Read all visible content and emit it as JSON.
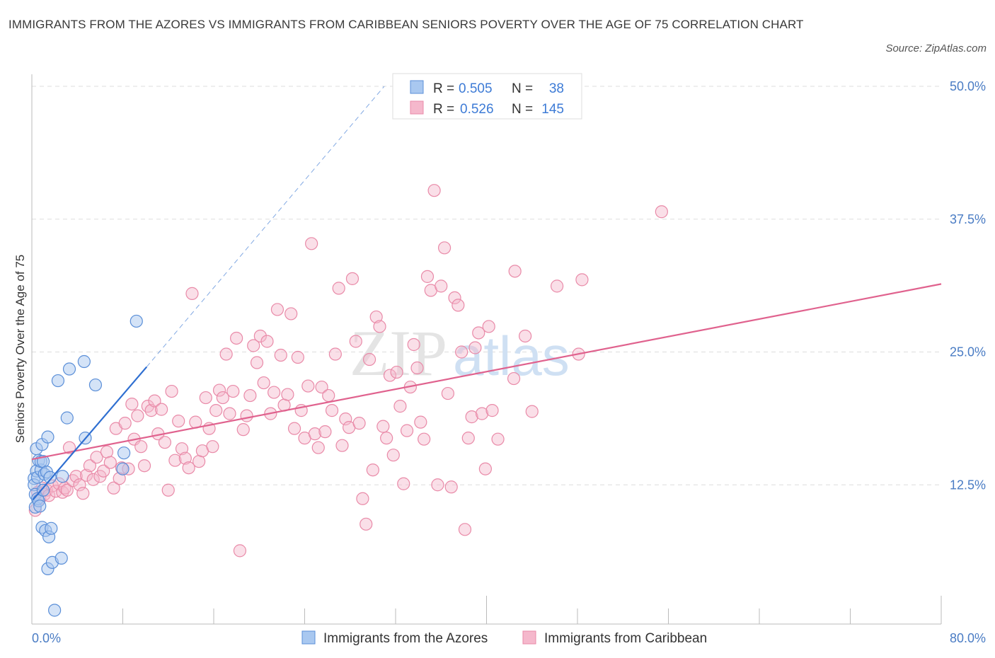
{
  "header": {
    "title": "IMMIGRANTS FROM THE AZORES VS IMMIGRANTS FROM CARIBBEAN SENIORS POVERTY OVER THE AGE OF 75 CORRELATION CHART",
    "source": "Source: ZipAtlas.com"
  },
  "watermark": {
    "zip": "ZIP",
    "atlas": "atlas"
  },
  "legend": {
    "r_label": "R =",
    "n_label": "N =",
    "azores": {
      "r": "0.505",
      "n": "38"
    },
    "caribbean": {
      "r": "0.526",
      "n": "145"
    }
  },
  "bottom_legend": {
    "azores": "Immigrants from the Azores",
    "caribbean": "Immigrants from Caribbean"
  },
  "colors": {
    "azores_fill": "#a9c8f0",
    "azores_stroke": "#5b8fd8",
    "azores_line": "#2f6fd1",
    "caribbean_fill": "#f5b8cc",
    "caribbean_stroke": "#e98aa8",
    "caribbean_line": "#e0628e",
    "grid": "#dddddd",
    "axis_label": "#4a7cc4"
  },
  "chart_data": {
    "type": "scatter",
    "title": "IMMIGRANTS FROM THE AZORES VS IMMIGRANTS FROM CARIBBEAN SENIORS POVERTY OVER THE AGE OF 75 CORRELATION CHART",
    "xlabel": "",
    "ylabel": "Seniors Poverty Over the Age of 75",
    "xlim": [
      0,
      80
    ],
    "ylim": [
      0,
      50
    ],
    "x_tick_labels": [
      "0.0%",
      "80.0%"
    ],
    "y_ticks": [
      12.5,
      25,
      37.5,
      50
    ],
    "y_tick_labels": [
      "12.5%",
      "25.0%",
      "37.5%",
      "50.0%"
    ],
    "series": [
      {
        "name": "Immigrants from the Azores",
        "r": 0.505,
        "n": 38,
        "trend": {
          "x": [
            0.1,
            10.1
          ],
          "y": [
            11.1,
            23.6
          ]
        },
        "trend_extension": {
          "x": [
            10.1,
            31.0
          ],
          "y": [
            23.6,
            50.0
          ]
        },
        "points": [
          [
            0.2,
            13.1
          ],
          [
            0.2,
            12.5
          ],
          [
            0.3,
            11.6
          ],
          [
            0.3,
            10.4
          ],
          [
            0.4,
            13.8
          ],
          [
            0.4,
            15.9
          ],
          [
            0.5,
            13.2
          ],
          [
            0.5,
            11.2
          ],
          [
            0.6,
            14.8
          ],
          [
            0.6,
            11.0
          ],
          [
            0.7,
            10.5
          ],
          [
            0.8,
            13.9
          ],
          [
            0.8,
            14.7
          ],
          [
            0.9,
            16.3
          ],
          [
            0.9,
            8.5
          ],
          [
            1.0,
            12.0
          ],
          [
            1.0,
            14.7
          ],
          [
            1.1,
            13.5
          ],
          [
            1.2,
            8.2
          ],
          [
            1.3,
            13.7
          ],
          [
            1.4,
            17.0
          ],
          [
            1.4,
            4.6
          ],
          [
            1.5,
            7.6
          ],
          [
            1.6,
            13.2
          ],
          [
            1.7,
            8.4
          ],
          [
            1.8,
            5.2
          ],
          [
            2.0,
            0.7
          ],
          [
            2.3,
            22.3
          ],
          [
            2.6,
            5.6
          ],
          [
            2.7,
            13.3
          ],
          [
            3.1,
            18.8
          ],
          [
            3.3,
            23.4
          ],
          [
            4.6,
            24.1
          ],
          [
            4.7,
            16.9
          ],
          [
            5.6,
            21.9
          ],
          [
            8.0,
            14.0
          ],
          [
            8.1,
            15.5
          ],
          [
            9.2,
            27.9
          ]
        ]
      },
      {
        "name": "Immigrants from Caribbean",
        "r": 0.526,
        "n": 145,
        "trend": {
          "x": [
            0,
            80
          ],
          "y": [
            14.9,
            31.4
          ]
        },
        "points": [
          [
            0.3,
            10.1
          ],
          [
            0.5,
            11.8
          ],
          [
            0.7,
            11.2
          ],
          [
            0.9,
            12.2
          ],
          [
            1.1,
            11.6
          ],
          [
            1.3,
            12.0
          ],
          [
            1.5,
            11.5
          ],
          [
            1.8,
            12.4
          ],
          [
            2.1,
            11.9
          ],
          [
            2.4,
            12.6
          ],
          [
            2.7,
            11.8
          ],
          [
            2.9,
            12.2
          ],
          [
            3.1,
            12.0
          ],
          [
            3.3,
            16.0
          ],
          [
            3.6,
            12.9
          ],
          [
            3.9,
            13.3
          ],
          [
            4.2,
            12.5
          ],
          [
            4.5,
            11.7
          ],
          [
            4.8,
            13.4
          ],
          [
            5.1,
            14.3
          ],
          [
            5.4,
            13.0
          ],
          [
            5.7,
            15.1
          ],
          [
            6.0,
            13.3
          ],
          [
            6.3,
            13.8
          ],
          [
            6.6,
            15.6
          ],
          [
            6.9,
            14.6
          ],
          [
            7.2,
            12.2
          ],
          [
            7.4,
            17.8
          ],
          [
            7.7,
            13.1
          ],
          [
            7.9,
            14.1
          ],
          [
            8.2,
            18.3
          ],
          [
            8.5,
            14.0
          ],
          [
            8.8,
            20.1
          ],
          [
            9.0,
            16.8
          ],
          [
            9.3,
            19.0
          ],
          [
            9.6,
            16.1
          ],
          [
            9.9,
            14.3
          ],
          [
            10.2,
            19.9
          ],
          [
            10.5,
            19.5
          ],
          [
            10.8,
            20.4
          ],
          [
            11.1,
            17.3
          ],
          [
            11.4,
            19.6
          ],
          [
            11.7,
            16.5
          ],
          [
            12.0,
            12.0
          ],
          [
            12.3,
            21.3
          ],
          [
            12.6,
            14.8
          ],
          [
            12.9,
            18.5
          ],
          [
            13.2,
            15.9
          ],
          [
            13.5,
            15.0
          ],
          [
            13.8,
            14.1
          ],
          [
            14.1,
            30.5
          ],
          [
            14.4,
            18.4
          ],
          [
            14.7,
            14.7
          ],
          [
            15.0,
            15.7
          ],
          [
            15.3,
            20.7
          ],
          [
            15.6,
            17.8
          ],
          [
            15.9,
            16.1
          ],
          [
            16.2,
            19.5
          ],
          [
            16.5,
            21.4
          ],
          [
            16.8,
            20.7
          ],
          [
            17.1,
            24.8
          ],
          [
            17.4,
            19.2
          ],
          [
            17.7,
            21.3
          ],
          [
            18.0,
            26.3
          ],
          [
            18.3,
            6.3
          ],
          [
            18.6,
            17.7
          ],
          [
            18.9,
            19.0
          ],
          [
            19.2,
            20.9
          ],
          [
            19.5,
            25.6
          ],
          [
            19.8,
            24.0
          ],
          [
            20.1,
            26.5
          ],
          [
            20.4,
            22.1
          ],
          [
            20.7,
            26.0
          ],
          [
            21.0,
            19.2
          ],
          [
            21.3,
            21.2
          ],
          [
            21.6,
            29.0
          ],
          [
            21.9,
            24.7
          ],
          [
            22.2,
            20.0
          ],
          [
            22.5,
            21.0
          ],
          [
            22.8,
            28.6
          ],
          [
            23.1,
            17.8
          ],
          [
            23.4,
            24.5
          ],
          [
            23.7,
            19.5
          ],
          [
            24.0,
            16.9
          ],
          [
            24.3,
            21.8
          ],
          [
            24.6,
            35.2
          ],
          [
            24.9,
            17.3
          ],
          [
            25.2,
            16.0
          ],
          [
            25.5,
            21.7
          ],
          [
            25.8,
            17.5
          ],
          [
            26.1,
            20.9
          ],
          [
            26.4,
            19.5
          ],
          [
            26.7,
            24.8
          ],
          [
            27.0,
            31.0
          ],
          [
            27.3,
            16.2
          ],
          [
            27.6,
            18.7
          ],
          [
            27.9,
            17.9
          ],
          [
            28.2,
            31.9
          ],
          [
            28.5,
            26.0
          ],
          [
            28.8,
            18.3
          ],
          [
            29.1,
            11.2
          ],
          [
            29.4,
            8.8
          ],
          [
            29.7,
            24.3
          ],
          [
            30.0,
            13.9
          ],
          [
            30.3,
            28.3
          ],
          [
            30.6,
            27.4
          ],
          [
            30.9,
            18.0
          ],
          [
            31.2,
            16.9
          ],
          [
            31.5,
            22.8
          ],
          [
            31.8,
            15.3
          ],
          [
            32.1,
            23.1
          ],
          [
            32.4,
            19.9
          ],
          [
            32.7,
            12.6
          ],
          [
            33.0,
            17.6
          ],
          [
            33.3,
            21.7
          ],
          [
            33.6,
            25.7
          ],
          [
            33.9,
            23.5
          ],
          [
            34.2,
            18.4
          ],
          [
            34.5,
            16.8
          ],
          [
            34.8,
            32.1
          ],
          [
            35.1,
            30.8
          ],
          [
            35.4,
            40.2
          ],
          [
            35.7,
            12.5
          ],
          [
            36.0,
            31.2
          ],
          [
            36.3,
            34.8
          ],
          [
            36.6,
            21.1
          ],
          [
            36.9,
            12.3
          ],
          [
            37.2,
            30.1
          ],
          [
            37.5,
            29.4
          ],
          [
            37.8,
            25.0
          ],
          [
            38.1,
            8.3
          ],
          [
            38.4,
            16.9
          ],
          [
            38.7,
            18.9
          ],
          [
            39.0,
            25.4
          ],
          [
            39.3,
            26.8
          ],
          [
            39.6,
            19.2
          ],
          [
            39.9,
            14.0
          ],
          [
            40.2,
            27.4
          ],
          [
            40.5,
            19.5
          ],
          [
            41.0,
            16.8
          ],
          [
            42.4,
            22.5
          ],
          [
            42.5,
            32.6
          ],
          [
            43.4,
            26.5
          ],
          [
            44.0,
            19.4
          ],
          [
            46.2,
            31.2
          ],
          [
            48.1,
            24.8
          ],
          [
            48.4,
            31.8
          ],
          [
            55.4,
            38.2
          ]
        ]
      }
    ]
  }
}
